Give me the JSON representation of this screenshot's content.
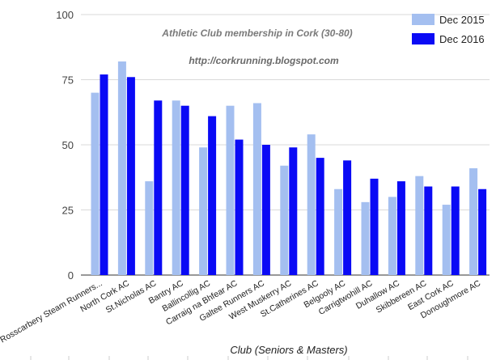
{
  "chart_data": {
    "type": "bar",
    "title": "Athletic Club membership in Cork (30-80)",
    "subtitle": "http://corkrunning.blogspot.com",
    "xlabel": "Club (Seniors & Masters)",
    "ylabel": "",
    "ylim": [
      0,
      100
    ],
    "yticks": [
      0,
      25,
      50,
      75,
      100
    ],
    "grid": true,
    "legend_position": "top-right",
    "categories": [
      "Rosscarbery Steam Runners...",
      "North Cork AC",
      "St.Nicholas AC",
      "Bantry AC",
      "Ballincollig AC",
      "Carraig na Bhfear AC",
      "Galtee Runners AC",
      "West Muskerry AC",
      "St.Catherines AC",
      "Belgooly AC",
      "Carrigtwohill AC",
      "Duhallow AC",
      "Skibbereen AC",
      "East Cork AC",
      "Donoughmore AC"
    ],
    "series": [
      {
        "name": "Dec 2015",
        "color": "#a4bff0",
        "values": [
          70,
          82,
          36,
          67,
          49,
          65,
          66,
          42,
          54,
          33,
          28,
          30,
          38,
          27,
          41
        ]
      },
      {
        "name": "Dec 2016",
        "color": "#0a0af5",
        "values": [
          77,
          76,
          67,
          65,
          61,
          52,
          50,
          49,
          45,
          44,
          37,
          36,
          34,
          34,
          33
        ]
      }
    ]
  }
}
